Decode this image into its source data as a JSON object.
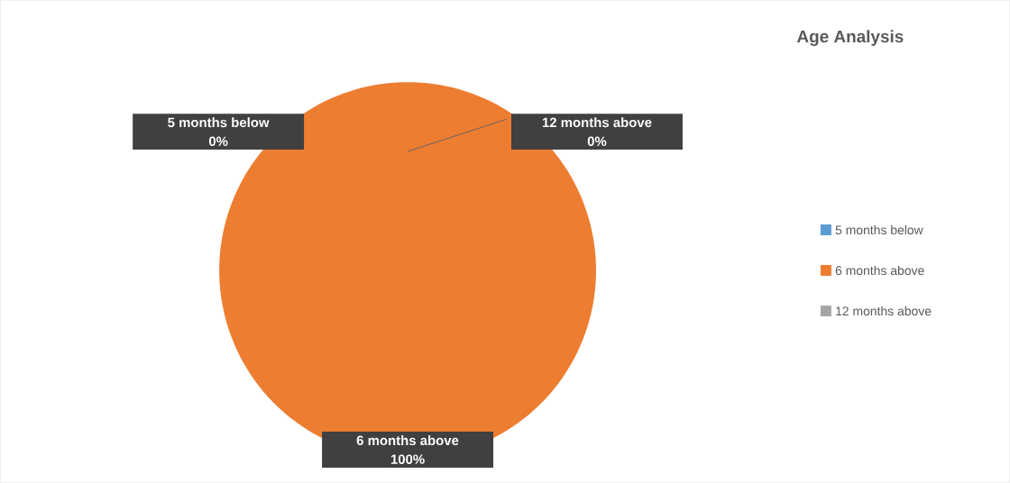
{
  "chart_data": {
    "type": "pie",
    "title": "Age Analysis",
    "categories": [
      "5 months below",
      "6 months above",
      "12 months above"
    ],
    "values": [
      0,
      100,
      0
    ],
    "colors": [
      "#5b9bd5",
      "#ed7d31",
      "#a5a5a5"
    ],
    "value_labels": [
      "0%",
      "100%",
      "0%"
    ],
    "legend": "right"
  }
}
